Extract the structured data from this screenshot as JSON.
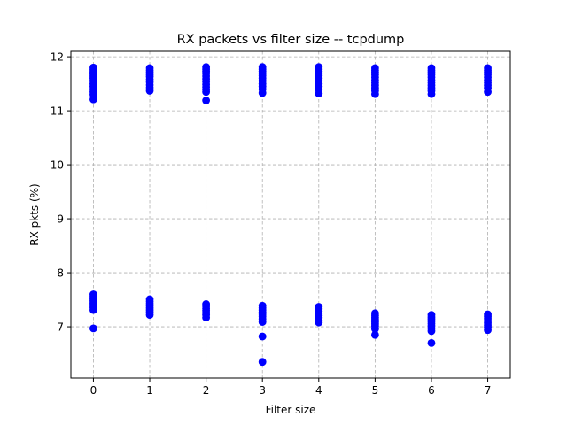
{
  "chart_data": {
    "type": "scatter",
    "title": "RX packets vs filter size -- tcpdump",
    "xlabel": "Filter size",
    "ylabel": "RX pkts (%)",
    "xlim": [
      -0.4,
      7.4
    ],
    "ylim": [
      6.05,
      12.1
    ],
    "xticks": [
      0,
      1,
      2,
      3,
      4,
      5,
      6,
      7
    ],
    "yticks": [
      7,
      8,
      9,
      10,
      11,
      12
    ],
    "grid": true,
    "marker_color": "#0000ff",
    "series": [
      {
        "points": [
          {
            "x": 0,
            "y": 11.8
          },
          {
            "x": 0,
            "y": 11.76
          },
          {
            "x": 0,
            "y": 11.72
          },
          {
            "x": 0,
            "y": 11.68
          },
          {
            "x": 0,
            "y": 11.64
          },
          {
            "x": 0,
            "y": 11.6
          },
          {
            "x": 0,
            "y": 11.55
          },
          {
            "x": 0,
            "y": 11.5
          },
          {
            "x": 0,
            "y": 11.45
          },
          {
            "x": 0,
            "y": 11.4
          },
          {
            "x": 0,
            "y": 11.35
          },
          {
            "x": 0,
            "y": 11.3
          },
          {
            "x": 0,
            "y": 11.21
          },
          {
            "x": 0,
            "y": 7.6
          },
          {
            "x": 0,
            "y": 7.56
          },
          {
            "x": 0,
            "y": 7.52
          },
          {
            "x": 0,
            "y": 7.48
          },
          {
            "x": 0,
            "y": 7.44
          },
          {
            "x": 0,
            "y": 7.4
          },
          {
            "x": 0,
            "y": 7.36
          },
          {
            "x": 0,
            "y": 7.31
          },
          {
            "x": 0,
            "y": 6.97
          },
          {
            "x": 1,
            "y": 11.79
          },
          {
            "x": 1,
            "y": 11.75
          },
          {
            "x": 1,
            "y": 11.71
          },
          {
            "x": 1,
            "y": 11.67
          },
          {
            "x": 1,
            "y": 11.63
          },
          {
            "x": 1,
            "y": 11.58
          },
          {
            "x": 1,
            "y": 11.53
          },
          {
            "x": 1,
            "y": 11.48
          },
          {
            "x": 1,
            "y": 11.43
          },
          {
            "x": 1,
            "y": 11.37
          },
          {
            "x": 1,
            "y": 7.51
          },
          {
            "x": 1,
            "y": 7.47
          },
          {
            "x": 1,
            "y": 7.43
          },
          {
            "x": 1,
            "y": 7.39
          },
          {
            "x": 1,
            "y": 7.35
          },
          {
            "x": 1,
            "y": 7.31
          },
          {
            "x": 1,
            "y": 7.27
          },
          {
            "x": 1,
            "y": 7.22
          },
          {
            "x": 2,
            "y": 11.81
          },
          {
            "x": 2,
            "y": 11.77
          },
          {
            "x": 2,
            "y": 11.73
          },
          {
            "x": 2,
            "y": 11.69
          },
          {
            "x": 2,
            "y": 11.64
          },
          {
            "x": 2,
            "y": 11.59
          },
          {
            "x": 2,
            "y": 11.54
          },
          {
            "x": 2,
            "y": 11.49
          },
          {
            "x": 2,
            "y": 11.44
          },
          {
            "x": 2,
            "y": 11.39
          },
          {
            "x": 2,
            "y": 11.35
          },
          {
            "x": 2,
            "y": 11.19
          },
          {
            "x": 2,
            "y": 7.42
          },
          {
            "x": 2,
            "y": 7.38
          },
          {
            "x": 2,
            "y": 7.34
          },
          {
            "x": 2,
            "y": 7.3
          },
          {
            "x": 2,
            "y": 7.26
          },
          {
            "x": 2,
            "y": 7.22
          },
          {
            "x": 2,
            "y": 7.17
          },
          {
            "x": 3,
            "y": 11.81
          },
          {
            "x": 3,
            "y": 11.77
          },
          {
            "x": 3,
            "y": 11.73
          },
          {
            "x": 3,
            "y": 11.69
          },
          {
            "x": 3,
            "y": 11.65
          },
          {
            "x": 3,
            "y": 11.6
          },
          {
            "x": 3,
            "y": 11.55
          },
          {
            "x": 3,
            "y": 11.5
          },
          {
            "x": 3,
            "y": 11.45
          },
          {
            "x": 3,
            "y": 11.4
          },
          {
            "x": 3,
            "y": 11.33
          },
          {
            "x": 3,
            "y": 7.39
          },
          {
            "x": 3,
            "y": 7.35
          },
          {
            "x": 3,
            "y": 7.31
          },
          {
            "x": 3,
            "y": 7.27
          },
          {
            "x": 3,
            "y": 7.23
          },
          {
            "x": 3,
            "y": 7.19
          },
          {
            "x": 3,
            "y": 7.14
          },
          {
            "x": 3,
            "y": 7.09
          },
          {
            "x": 3,
            "y": 6.82
          },
          {
            "x": 3,
            "y": 6.35
          },
          {
            "x": 4,
            "y": 11.81
          },
          {
            "x": 4,
            "y": 11.77
          },
          {
            "x": 4,
            "y": 11.73
          },
          {
            "x": 4,
            "y": 11.69
          },
          {
            "x": 4,
            "y": 11.65
          },
          {
            "x": 4,
            "y": 11.6
          },
          {
            "x": 4,
            "y": 11.55
          },
          {
            "x": 4,
            "y": 11.5
          },
          {
            "x": 4,
            "y": 11.45
          },
          {
            "x": 4,
            "y": 11.4
          },
          {
            "x": 4,
            "y": 11.32
          },
          {
            "x": 4,
            "y": 7.37
          },
          {
            "x": 4,
            "y": 7.33
          },
          {
            "x": 4,
            "y": 7.29
          },
          {
            "x": 4,
            "y": 7.25
          },
          {
            "x": 4,
            "y": 7.21
          },
          {
            "x": 4,
            "y": 7.17
          },
          {
            "x": 4,
            "y": 7.12
          },
          {
            "x": 4,
            "y": 7.08
          },
          {
            "x": 5,
            "y": 11.79
          },
          {
            "x": 5,
            "y": 11.75
          },
          {
            "x": 5,
            "y": 11.71
          },
          {
            "x": 5,
            "y": 11.67
          },
          {
            "x": 5,
            "y": 11.62
          },
          {
            "x": 5,
            "y": 11.57
          },
          {
            "x": 5,
            "y": 11.52
          },
          {
            "x": 5,
            "y": 11.47
          },
          {
            "x": 5,
            "y": 11.42
          },
          {
            "x": 5,
            "y": 11.37
          },
          {
            "x": 5,
            "y": 11.31
          },
          {
            "x": 5,
            "y": 7.25
          },
          {
            "x": 5,
            "y": 7.21
          },
          {
            "x": 5,
            "y": 7.17
          },
          {
            "x": 5,
            "y": 7.13
          },
          {
            "x": 5,
            "y": 7.09
          },
          {
            "x": 5,
            "y": 7.05
          },
          {
            "x": 5,
            "y": 7.01
          },
          {
            "x": 5,
            "y": 6.96
          },
          {
            "x": 5,
            "y": 6.85
          },
          {
            "x": 6,
            "y": 11.79
          },
          {
            "x": 6,
            "y": 11.75
          },
          {
            "x": 6,
            "y": 11.71
          },
          {
            "x": 6,
            "y": 11.67
          },
          {
            "x": 6,
            "y": 11.62
          },
          {
            "x": 6,
            "y": 11.57
          },
          {
            "x": 6,
            "y": 11.52
          },
          {
            "x": 6,
            "y": 11.47
          },
          {
            "x": 6,
            "y": 11.42
          },
          {
            "x": 6,
            "y": 11.37
          },
          {
            "x": 6,
            "y": 11.31
          },
          {
            "x": 6,
            "y": 7.22
          },
          {
            "x": 6,
            "y": 7.18
          },
          {
            "x": 6,
            "y": 7.14
          },
          {
            "x": 6,
            "y": 7.1
          },
          {
            "x": 6,
            "y": 7.06
          },
          {
            "x": 6,
            "y": 7.02
          },
          {
            "x": 6,
            "y": 6.97
          },
          {
            "x": 6,
            "y": 6.92
          },
          {
            "x": 6,
            "y": 6.7
          },
          {
            "x": 7,
            "y": 11.79
          },
          {
            "x": 7,
            "y": 11.75
          },
          {
            "x": 7,
            "y": 11.71
          },
          {
            "x": 7,
            "y": 11.67
          },
          {
            "x": 7,
            "y": 11.62
          },
          {
            "x": 7,
            "y": 11.57
          },
          {
            "x": 7,
            "y": 11.52
          },
          {
            "x": 7,
            "y": 11.47
          },
          {
            "x": 7,
            "y": 11.42
          },
          {
            "x": 7,
            "y": 11.35
          },
          {
            "x": 7,
            "y": 7.23
          },
          {
            "x": 7,
            "y": 7.19
          },
          {
            "x": 7,
            "y": 7.15
          },
          {
            "x": 7,
            "y": 7.11
          },
          {
            "x": 7,
            "y": 7.07
          },
          {
            "x": 7,
            "y": 7.03
          },
          {
            "x": 7,
            "y": 6.99
          },
          {
            "x": 7,
            "y": 6.94
          }
        ]
      }
    ]
  }
}
